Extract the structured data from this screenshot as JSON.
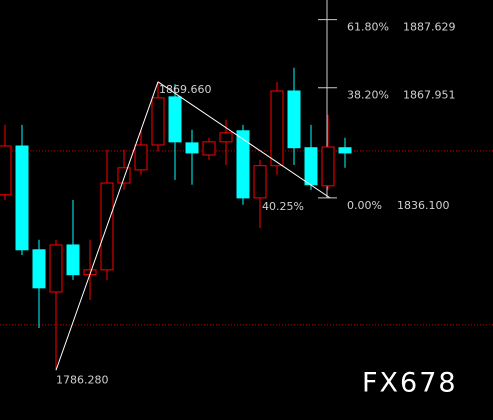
{
  "chart_data": {
    "type": "candlestick",
    "ylim": [
      1771.9,
      1893.3
    ],
    "up_color": "#ff0000",
    "down_color": "#00ffff",
    "open": [
      1837.0,
      1851.1,
      1821.1,
      1808.9,
      1822.5,
      1813.9,
      1815.3,
      1840.4,
      1844.2,
      1851.4,
      1865.3,
      1852.0,
      1848.5,
      1852.3,
      1855.5,
      1836.1,
      1845.4,
      1867.0,
      1850.6,
      1839.6,
      1850.6
    ],
    "high": [
      1857.2,
      1857.2,
      1824.0,
      1824.0,
      1835.5,
      1824.0,
      1850.0,
      1850.0,
      1855.8,
      1869.66,
      1869.0,
      1855.8,
      1853.5,
      1858.7,
      1857.2,
      1847.1,
      1869.6,
      1873.7,
      1857.2,
      1860.1,
      1853.5
    ],
    "low": [
      1835.5,
      1819.6,
      1798.5,
      1786.28,
      1812.4,
      1806.6,
      1812.4,
      1838.4,
      1842.8,
      1849.5,
      1841.3,
      1839.9,
      1847.1,
      1845.6,
      1834.1,
      1827.4,
      1842.8,
      1845.6,
      1838.4,
      1838.4,
      1844.8
    ],
    "close": [
      1851.1,
      1821.1,
      1810.1,
      1822.5,
      1813.9,
      1815.3,
      1840.4,
      1844.8,
      1851.4,
      1865.0,
      1852.3,
      1849.1,
      1852.3,
      1854.9,
      1836.1,
      1845.4,
      1867.0,
      1850.6,
      1839.9,
      1850.8,
      1849.1
    ],
    "reference_lines": [
      1849.7,
      1799.4
    ],
    "fib_levels": [
      {
        "ratio": "61.80%",
        "price": 1887.629
      },
      {
        "ratio": "38.20%",
        "price": 1867.951
      },
      {
        "ratio": "0.00%",
        "price": {
          "value": 1836.1,
          "label": "1836.100"
        }
      }
    ],
    "swing_high": {
      "value": 1869.66,
      "label": "1869.660"
    },
    "swing_low": {
      "value": 1786.28,
      "label": "1786.280"
    },
    "retracement": "40.25%",
    "watermark": "FX678"
  }
}
